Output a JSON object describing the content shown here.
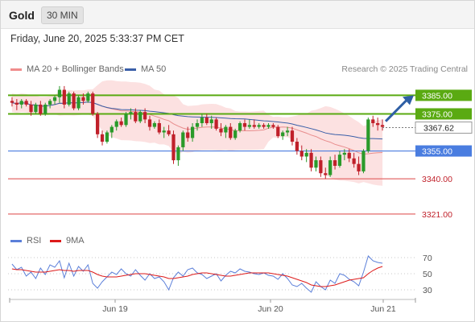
{
  "header": {
    "instrument": "Gold",
    "timeframe": "30 MIN"
  },
  "timestamp": "Friday, June 20, 2025 5:33:37 PM CET",
  "legend": [
    {
      "label": "MA 20 + Bollinger Bands",
      "color": "#f08c8c"
    },
    {
      "label": "MA 50",
      "color": "#3a5fa8"
    }
  ],
  "rsi_legend": [
    {
      "label": "RSI",
      "color": "#5b7fd9"
    },
    {
      "label": "9MA",
      "color": "#dd1a1a"
    }
  ],
  "credit": "Research © 2025 Trading Central",
  "colors": {
    "up": "#2a9a2a",
    "down": "#c0202a",
    "resistance": "#5aaa12",
    "support": "#4a7de0",
    "lower": "#e46a6a",
    "arrow": "#2f5fa5",
    "band": "#fbdcdc"
  },
  "chart_data": {
    "type": "candlestick",
    "y_range": [
      3314,
      3393
    ],
    "x_ticks": [
      "Jun 19",
      "Jun 20",
      "Jun 21"
    ],
    "current_price": 3367.62,
    "levels": [
      {
        "value": 3385.0,
        "label": "3385.00",
        "kind": "resistance"
      },
      {
        "value": 3375.0,
        "label": "3375.00",
        "kind": "resistance"
      },
      {
        "value": 3355.0,
        "label": "3355.00",
        "kind": "support"
      },
      {
        "value": 3340.0,
        "label": "3340.00",
        "kind": "lower"
      },
      {
        "value": 3321.0,
        "label": "3321.00",
        "kind": "lower"
      }
    ],
    "projection": {
      "from": 3371,
      "to": 3385
    },
    "candles": [
      [
        3382,
        3384,
        3379,
        3381
      ],
      [
        3381,
        3383,
        3377,
        3380
      ],
      [
        3380,
        3383,
        3378,
        3382
      ],
      [
        3382,
        3383,
        3379,
        3380
      ],
      [
        3380,
        3382,
        3374,
        3376
      ],
      [
        3376,
        3381,
        3375,
        3380
      ],
      [
        3380,
        3382,
        3374,
        3375
      ],
      [
        3375,
        3381,
        3374,
        3380
      ],
      [
        3380,
        3383,
        3378,
        3382
      ],
      [
        3382,
        3385,
        3380,
        3384
      ],
      [
        3384,
        3390,
        3381,
        3388
      ],
      [
        3388,
        3390,
        3378,
        3380
      ],
      [
        3380,
        3387,
        3379,
        3386
      ],
      [
        3386,
        3387,
        3377,
        3378
      ],
      [
        3378,
        3385,
        3377,
        3384
      ],
      [
        3384,
        3386,
        3380,
        3382
      ],
      [
        3382,
        3387,
        3381,
        3386
      ],
      [
        3386,
        3387,
        3374,
        3375
      ],
      [
        3375,
        3376,
        3362,
        3364
      ],
      [
        3364,
        3366,
        3358,
        3360
      ],
      [
        3360,
        3366,
        3359,
        3365
      ],
      [
        3365,
        3369,
        3362,
        3368
      ],
      [
        3368,
        3372,
        3366,
        3371
      ],
      [
        3371,
        3373,
        3368,
        3369
      ],
      [
        3369,
        3376,
        3368,
        3375
      ],
      [
        3375,
        3378,
        3372,
        3376
      ],
      [
        3376,
        3378,
        3370,
        3371
      ],
      [
        3371,
        3377,
        3370,
        3376
      ],
      [
        3376,
        3378,
        3370,
        3372
      ],
      [
        3372,
        3374,
        3366,
        3368
      ],
      [
        3368,
        3371,
        3367,
        3370
      ],
      [
        3370,
        3372,
        3364,
        3365
      ],
      [
        3365,
        3368,
        3362,
        3366
      ],
      [
        3366,
        3369,
        3363,
        3364
      ],
      [
        3364,
        3366,
        3348,
        3350
      ],
      [
        3350,
        3358,
        3347,
        3357
      ],
      [
        3357,
        3366,
        3355,
        3365
      ],
      [
        3365,
        3368,
        3360,
        3362
      ],
      [
        3362,
        3370,
        3360,
        3368
      ],
      [
        3368,
        3372,
        3366,
        3370
      ],
      [
        3370,
        3375,
        3368,
        3373
      ],
      [
        3373,
        3375,
        3369,
        3370
      ],
      [
        3370,
        3374,
        3367,
        3372
      ],
      [
        3372,
        3373,
        3366,
        3367
      ],
      [
        3367,
        3370,
        3363,
        3365
      ],
      [
        3365,
        3369,
        3362,
        3368
      ],
      [
        3368,
        3370,
        3361,
        3362
      ],
      [
        3362,
        3367,
        3361,
        3366
      ],
      [
        3366,
        3371,
        3365,
        3370
      ],
      [
        3370,
        3372,
        3366,
        3368
      ],
      [
        3368,
        3372,
        3367,
        3369
      ],
      [
        3369,
        3372,
        3367,
        3368
      ],
      [
        3368,
        3370,
        3367,
        3369
      ],
      [
        3369,
        3370,
        3367,
        3368
      ],
      [
        3368,
        3370,
        3367,
        3369
      ],
      [
        3369,
        3370,
        3367,
        3368
      ],
      [
        3368,
        3369,
        3362,
        3363
      ],
      [
        3363,
        3366,
        3361,
        3365
      ],
      [
        3365,
        3368,
        3363,
        3366
      ],
      [
        3366,
        3368,
        3358,
        3360
      ],
      [
        3360,
        3362,
        3353,
        3355
      ],
      [
        3355,
        3358,
        3350,
        3352
      ],
      [
        3352,
        3356,
        3349,
        3354
      ],
      [
        3354,
        3356,
        3344,
        3346
      ],
      [
        3346,
        3352,
        3344,
        3350
      ],
      [
        3350,
        3352,
        3341,
        3343
      ],
      [
        3343,
        3346,
        3340,
        3342
      ],
      [
        3342,
        3352,
        3341,
        3350
      ],
      [
        3350,
        3353,
        3345,
        3347
      ],
      [
        3347,
        3355,
        3346,
        3353
      ],
      [
        3353,
        3356,
        3350,
        3354
      ],
      [
        3354,
        3356,
        3349,
        3351
      ],
      [
        3351,
        3354,
        3346,
        3348
      ],
      [
        3348,
        3352,
        3342,
        3344
      ],
      [
        3344,
        3356,
        3343,
        3355
      ],
      [
        3355,
        3373,
        3354,
        3372
      ],
      [
        3372,
        3374,
        3368,
        3370
      ],
      [
        3370,
        3373,
        3366,
        3369
      ],
      [
        3369,
        3372,
        3366,
        3368
      ]
    ],
    "rsi_panel": {
      "y_ticks": [
        70,
        50,
        30
      ],
      "y_range": [
        20,
        80
      ],
      "rsi": [
        62,
        55,
        58,
        47,
        52,
        44,
        57,
        49,
        61,
        58,
        66,
        45,
        63,
        47,
        59,
        53,
        61,
        38,
        32,
        40,
        46,
        52,
        49,
        56,
        50,
        47,
        55,
        48,
        42,
        50,
        44,
        46,
        40,
        30,
        45,
        52,
        47,
        55,
        57,
        51,
        49,
        44,
        47,
        50,
        41,
        48,
        53,
        51,
        56,
        53,
        52,
        50,
        49,
        51,
        48,
        47,
        43,
        50,
        44,
        36,
        34,
        38,
        32,
        27,
        40,
        34,
        30,
        42,
        38,
        50,
        48,
        43,
        40,
        35,
        52,
        72,
        66,
        64,
        63
      ],
      "rsi_ma": [
        56,
        55,
        55,
        54,
        53,
        52,
        52,
        52,
        53,
        54,
        55,
        54,
        54,
        53,
        54,
        54,
        54,
        52,
        49,
        47,
        46,
        46,
        46,
        47,
        48,
        49,
        50,
        50,
        50,
        49,
        48,
        47,
        46,
        44,
        44,
        45,
        46,
        47,
        49,
        50,
        51,
        51,
        50,
        49,
        48,
        47,
        47,
        48,
        49,
        50,
        51,
        51,
        51,
        51,
        51,
        50,
        49,
        48,
        47,
        45,
        43,
        41,
        39,
        36,
        35,
        34,
        34,
        35,
        36,
        38,
        40,
        42,
        43,
        44,
        45,
        50,
        54,
        57,
        59
      ]
    }
  }
}
